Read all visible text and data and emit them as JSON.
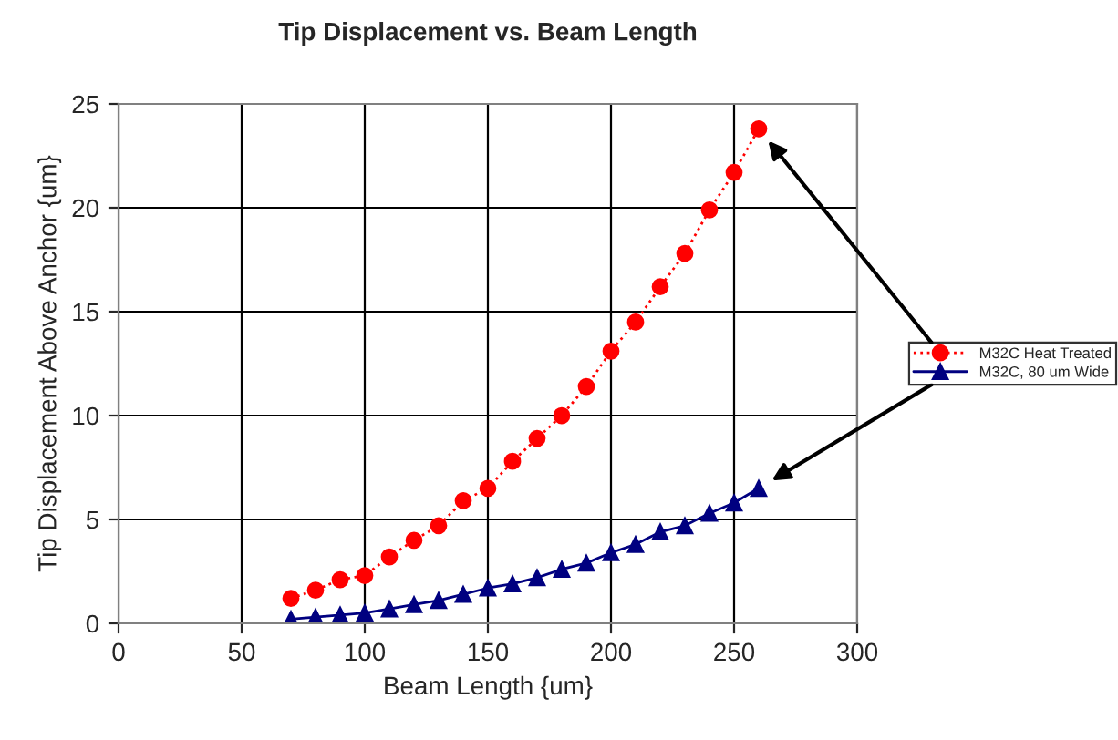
{
  "chart_data": {
    "type": "line",
    "title": "Tip Displacement vs. Beam Length",
    "xlabel": "Beam Length {um}",
    "ylabel": "Tip Displacement Above Anchor {um}",
    "x": [
      70,
      80,
      90,
      100,
      110,
      120,
      130,
      140,
      150,
      160,
      170,
      180,
      190,
      200,
      210,
      220,
      230,
      240,
      250,
      260
    ],
    "series": [
      {
        "name": "M32C Heat Treated",
        "color": "#ff0000",
        "marker": "circle",
        "line_style": "dotted",
        "values": [
          1.2,
          1.6,
          2.1,
          2.3,
          3.2,
          4.0,
          4.7,
          5.9,
          6.5,
          7.8,
          8.9,
          10.0,
          11.4,
          13.1,
          14.5,
          16.2,
          17.8,
          19.9,
          21.7,
          23.8
        ]
      },
      {
        "name": "M32C, 80 um Wide",
        "color": "#000080",
        "marker": "triangle",
        "line_style": "solid",
        "values": [
          0.2,
          0.3,
          0.4,
          0.5,
          0.7,
          0.9,
          1.1,
          1.4,
          1.7,
          1.9,
          2.2,
          2.6,
          2.9,
          3.4,
          3.8,
          4.4,
          4.7,
          5.3,
          5.8,
          6.5
        ]
      }
    ],
    "xlim": [
      0,
      300
    ],
    "xticks": [
      0,
      50,
      100,
      150,
      200,
      250,
      300
    ],
    "ylim": [
      0,
      25
    ],
    "yticks": [
      0,
      5,
      10,
      15,
      20,
      25
    ],
    "grid": true,
    "legend": "right"
  }
}
